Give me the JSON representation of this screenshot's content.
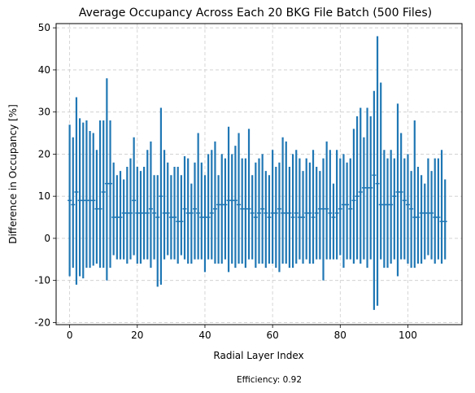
{
  "chart_data": {
    "type": "errorbar",
    "title": "Average Occupancy Across Each 20 BKG File Batch (500 Files)",
    "xlabel": "Radial Layer Index",
    "ylabel": "Difference in Occupancy [%]",
    "xlim": [
      -4,
      116
    ],
    "ylim": [
      -20.5,
      51
    ],
    "xticks": [
      0,
      20,
      40,
      60,
      80,
      100
    ],
    "yticks": [
      -20,
      -10,
      0,
      10,
      20,
      30,
      40,
      50
    ],
    "grid": true,
    "color": "#1f77b4",
    "x": [
      0,
      1,
      2,
      3,
      4,
      5,
      6,
      7,
      8,
      9,
      10,
      11,
      12,
      13,
      14,
      15,
      16,
      17,
      18,
      19,
      20,
      21,
      22,
      23,
      24,
      25,
      26,
      27,
      28,
      29,
      30,
      31,
      32,
      33,
      34,
      35,
      36,
      37,
      38,
      39,
      40,
      41,
      42,
      43,
      44,
      45,
      46,
      47,
      48,
      49,
      50,
      51,
      52,
      53,
      54,
      55,
      56,
      57,
      58,
      59,
      60,
      61,
      62,
      63,
      64,
      65,
      66,
      67,
      68,
      69,
      70,
      71,
      72,
      73,
      74,
      75,
      76,
      77,
      78,
      79,
      80,
      81,
      82,
      83,
      84,
      85,
      86,
      87,
      88,
      89,
      90,
      91,
      92,
      93,
      94,
      95,
      96,
      97,
      98,
      99,
      100,
      101,
      102,
      103,
      104,
      105,
      106,
      107,
      108,
      109,
      110,
      111
    ],
    "series": [
      {
        "mean": [
          9,
          8,
          11,
          9,
          9,
          9,
          9,
          9,
          7,
          7,
          11,
          13,
          13,
          5,
          5,
          5,
          6,
          6,
          6,
          9,
          6,
          6,
          6,
          6,
          7,
          6,
          5,
          10,
          6,
          6,
          5,
          5,
          4,
          4,
          7,
          6,
          6,
          7,
          6,
          5,
          5,
          5,
          6,
          7,
          8,
          8,
          8,
          9,
          9,
          9,
          8,
          7,
          7,
          7,
          6,
          5,
          6,
          7,
          6,
          5,
          6,
          6,
          7,
          6,
          6,
          6,
          5,
          6,
          5,
          5,
          6,
          6,
          5,
          6,
          7,
          7,
          7,
          6,
          5,
          6,
          7,
          8,
          8,
          7,
          9,
          10,
          11,
          12,
          12,
          12,
          15,
          13,
          8,
          8,
          8,
          8,
          10,
          11,
          11,
          9,
          8,
          7,
          5,
          5,
          6,
          6,
          6,
          6,
          5,
          5,
          4,
          4
        ],
        "upper": [
          27,
          24,
          33.5,
          28.5,
          27.5,
          28,
          25.5,
          25,
          21,
          28,
          28,
          38,
          28,
          18,
          15,
          16,
          14,
          17,
          19,
          24,
          17,
          16,
          17,
          21,
          23,
          15,
          15,
          31,
          21,
          18,
          15,
          17,
          17,
          15,
          19.5,
          19,
          13,
          18,
          25,
          18,
          15,
          20,
          21,
          23,
          15,
          20,
          19,
          26.5,
          20,
          22,
          25,
          19,
          19,
          26,
          15,
          18,
          19,
          20,
          16,
          15,
          21,
          17,
          18,
          24,
          23,
          17,
          20,
          21,
          19,
          16,
          19,
          18,
          21,
          17,
          16,
          19,
          23,
          21,
          13,
          21,
          19,
          20,
          18,
          19,
          26,
          29,
          31,
          24,
          31,
          29,
          35,
          48,
          37,
          21,
          19,
          21,
          19,
          32,
          25,
          19,
          20,
          16,
          28,
          17,
          15,
          13,
          19,
          16,
          19,
          19,
          21,
          14
        ],
        "lower": [
          -9,
          -7,
          -11,
          -9,
          -9.5,
          -7,
          -7,
          -6.5,
          -6,
          -7,
          -7,
          -10,
          -7,
          -4,
          -5,
          -5,
          -5,
          -6,
          -5,
          -4,
          -6,
          -6,
          -5,
          -5,
          -7,
          -5,
          -11.5,
          -11,
          -5,
          -4,
          -5,
          -5,
          -6,
          -4,
          -5,
          -6,
          -6,
          -5,
          -5,
          -5,
          -8,
          -5,
          -5,
          -6,
          -6,
          -6,
          -5,
          -8,
          -6,
          -7,
          -6,
          -6,
          -7,
          -5,
          -5,
          -7,
          -6,
          -6,
          -7,
          -6,
          -6,
          -7,
          -8,
          -6,
          -6,
          -7,
          -7,
          -6,
          -5,
          -6,
          -5,
          -6,
          -6,
          -5,
          -5,
          -10,
          -5,
          -5,
          -5,
          -5,
          -4,
          -7,
          -5,
          -5,
          -6,
          -5,
          -6,
          -5,
          -7,
          -5,
          -17,
          -16,
          -5,
          -7,
          -7,
          -6,
          -5,
          -9,
          -5,
          -5,
          -6,
          -7,
          -7,
          -6,
          -6,
          -5,
          -4,
          -5,
          -6,
          -5,
          -6,
          -5
        ]
      }
    ]
  },
  "footer": {
    "efficiency_text": "Efficiency: 0.92"
  }
}
